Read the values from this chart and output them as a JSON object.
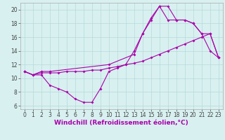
{
  "xlabel": "Windchill (Refroidissement éolien,°C)",
  "line1": {
    "x": [
      0,
      1,
      2,
      3,
      4,
      5,
      6,
      7,
      8,
      9,
      10,
      11,
      12,
      13,
      14,
      15,
      16,
      17,
      18,
      19,
      20,
      21,
      22,
      23
    ],
    "y": [
      11,
      10.5,
      10.5,
      9.0,
      8.5,
      8.0,
      7.0,
      6.5,
      6.5,
      8.5,
      11.0,
      11.5,
      12.0,
      14.0,
      16.5,
      18.5,
      20.5,
      20.5,
      18.5,
      18.5,
      18.0,
      16.5,
      14.0,
      13.0
    ]
  },
  "line2": {
    "x": [
      0,
      1,
      2,
      3,
      4,
      5,
      6,
      7,
      8,
      9,
      10,
      11,
      12,
      13,
      14,
      15,
      16,
      17,
      18,
      19,
      20,
      21,
      22,
      23
    ],
    "y": [
      11.0,
      10.5,
      10.8,
      10.8,
      10.8,
      11.0,
      11.0,
      11.0,
      11.2,
      11.2,
      11.5,
      11.7,
      12.0,
      12.2,
      12.5,
      13.0,
      13.5,
      14.0,
      14.5,
      15.0,
      15.5,
      16.0,
      16.5,
      13.0
    ]
  },
  "line3": {
    "x": [
      0,
      1,
      2,
      3,
      10,
      13,
      14,
      15,
      16,
      17,
      18,
      19,
      20,
      21,
      22,
      23
    ],
    "y": [
      11.0,
      10.5,
      11.0,
      11.0,
      12.0,
      13.5,
      16.5,
      18.8,
      20.5,
      18.5,
      18.5,
      18.5,
      18.0,
      16.5,
      16.5,
      13.0
    ]
  },
  "color": "#aa00aa",
  "background": "#d8f0f0",
  "grid_color": "#b8d8d8",
  "ylim": [
    5.5,
    21.0
  ],
  "xlim": [
    -0.5,
    23.5
  ],
  "yticks": [
    6,
    8,
    10,
    12,
    14,
    16,
    18,
    20
  ],
  "xticks": [
    0,
    1,
    2,
    3,
    4,
    5,
    6,
    7,
    8,
    9,
    10,
    11,
    12,
    13,
    14,
    15,
    16,
    17,
    18,
    19,
    20,
    21,
    22,
    23
  ],
  "tick_fontsize": 5.5,
  "xlabel_fontsize": 6.5,
  "marker": "D",
  "markersize": 2.0,
  "linewidth": 0.8
}
